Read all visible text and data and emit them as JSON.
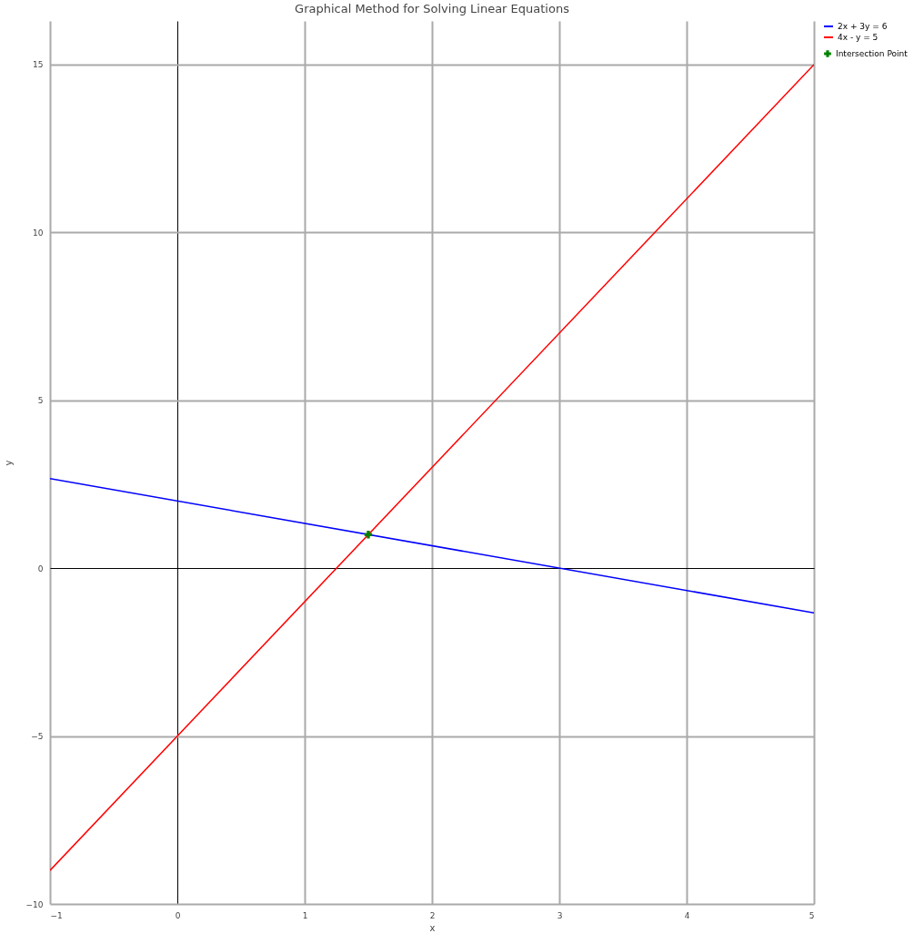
{
  "chart_data": {
    "type": "line",
    "title": "Graphical Method for Solving Linear Equations",
    "xlabel": "x",
    "ylabel": "y",
    "xlim": [
      -1,
      5
    ],
    "ylim": [
      -10,
      16.3
    ],
    "xticks": [
      {
        "value": -1,
        "label": "−1"
      },
      0,
      1,
      2,
      3,
      4,
      5
    ],
    "yticks": [
      {
        "value": -10,
        "label": "−10"
      },
      {
        "value": -5,
        "label": "−5"
      },
      0,
      5,
      10,
      15
    ],
    "grid": true,
    "legend": "top right",
    "series": [
      {
        "name": "2x + 3y = 6",
        "color": "#0000ff",
        "x": [
          -1,
          5
        ],
        "values": [
          2.67,
          -1.33
        ]
      },
      {
        "name": "4x - y = 5",
        "color": "#ff0000",
        "x": [
          -1,
          5
        ],
        "values": [
          -9,
          15
        ]
      },
      {
        "name": "Intersection Point",
        "type": "scatter",
        "marker": "cross",
        "color": "#008000",
        "x": [
          1.5
        ],
        "values": [
          1
        ]
      }
    ]
  }
}
